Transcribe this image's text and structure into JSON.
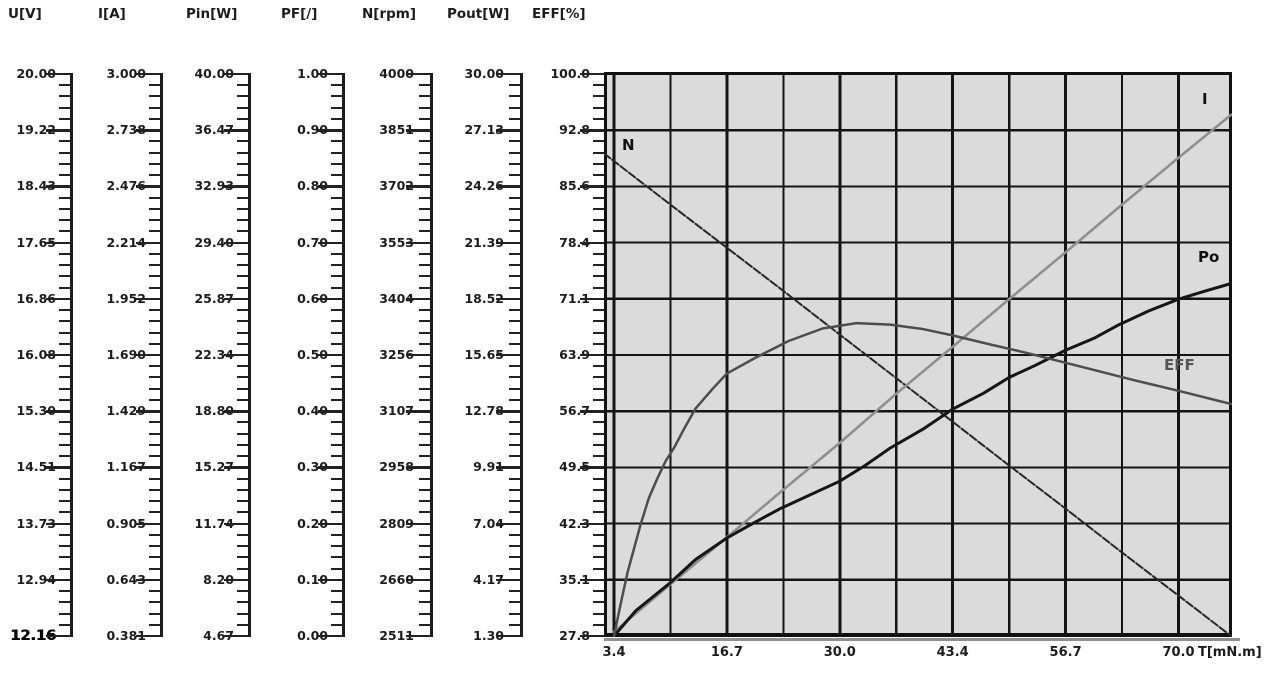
{
  "scales": [
    {
      "name": "u",
      "title": "U[V]",
      "labels": [
        "20.00",
        "19.22",
        "18.43",
        "17.65",
        "16.86",
        "16.08",
        "15.30",
        "14.51",
        "13.73",
        "12.94",
        "12.16"
      ],
      "bold_last": true
    },
    {
      "name": "i",
      "title": "I[A]",
      "labels": [
        "3.000",
        "2.738",
        "2.476",
        "2.214",
        "1.952",
        "1.690",
        "1.429",
        "1.167",
        "0.905",
        "0.643",
        "0.381"
      ],
      "bold_last": false
    },
    {
      "name": "pin",
      "title": "Pin[W]",
      "labels": [
        "40.00",
        "36.47",
        "32.93",
        "29.40",
        "25.87",
        "22.34",
        "18.80",
        "15.27",
        "11.74",
        "8.20",
        "4.67"
      ],
      "bold_last": false
    },
    {
      "name": "pf",
      "title": "PF[/]",
      "labels": [
        "1.00",
        "0.90",
        "0.80",
        "0.70",
        "0.60",
        "0.50",
        "0.40",
        "0.30",
        "0.20",
        "0.10",
        "0.00"
      ],
      "bold_last": false
    },
    {
      "name": "n",
      "title": "N[rpm]",
      "labels": [
        "4000",
        "3851",
        "3702",
        "3553",
        "3404",
        "3256",
        "3107",
        "2958",
        "2809",
        "2660",
        "2511"
      ],
      "bold_last": false
    },
    {
      "name": "pout",
      "title": "Pout[W]",
      "labels": [
        "30.00",
        "27.13",
        "24.26",
        "21.39",
        "18.52",
        "15.65",
        "12.78",
        "9.91",
        "7.04",
        "4.17",
        "1.30"
      ],
      "bold_last": false
    },
    {
      "name": "eff",
      "title": "EFF[%]",
      "labels": [
        "100.0",
        "92.8",
        "85.6",
        "78.4",
        "71.1",
        "63.9",
        "56.7",
        "49.5",
        "42.3",
        "35.1",
        "27.8"
      ],
      "bold_last": false
    }
  ],
  "chart_data": {
    "type": "line",
    "title": "",
    "xlabel": "T[mN.m]",
    "ylabel": "",
    "x_ticks": [
      "3.4",
      "16.7",
      "30.0",
      "43.4",
      "56.7",
      "70.0"
    ],
    "x_tick_values": [
      3.4,
      16.7,
      30.0,
      43.4,
      56.7,
      70.0
    ],
    "x_range": [
      3.4,
      76.2
    ],
    "grid": true,
    "plot_background": "#dbdbdb",
    "grid_color": "#141414",
    "series": [
      {
        "name": "N",
        "label": "N",
        "unit": "rpm",
        "axis_range": [
          2511,
          4000
        ],
        "color": "#272727",
        "width": 2,
        "dash": "8 2.5",
        "points": [
          [
            2.2,
            3790
          ],
          [
            10,
            3655
          ],
          [
            16.7,
            3540
          ],
          [
            23,
            3432
          ],
          [
            30,
            3310
          ],
          [
            36.7,
            3194
          ],
          [
            43.4,
            3078
          ],
          [
            50,
            2963
          ],
          [
            56.7,
            2848
          ],
          [
            63,
            2738
          ],
          [
            70,
            2618
          ],
          [
            76.2,
            2511
          ]
        ]
      },
      {
        "name": "I",
        "label": "I",
        "unit": "A",
        "axis_range": [
          0.381,
          3.0
        ],
        "color": "#8f8f8f",
        "width": 2.6,
        "dash": "",
        "points": [
          [
            3.4,
            0.4
          ],
          [
            10,
            0.62
          ],
          [
            16.7,
            0.84
          ],
          [
            23,
            1.05
          ],
          [
            30,
            1.28
          ],
          [
            36.7,
            1.51
          ],
          [
            43.4,
            1.73
          ],
          [
            50,
            1.95
          ],
          [
            56.7,
            2.17
          ],
          [
            63,
            2.38
          ],
          [
            70,
            2.61
          ],
          [
            76.2,
            2.81
          ]
        ]
      },
      {
        "name": "Po",
        "label": "Po",
        "unit": "W",
        "axis_range": [
          1.3,
          30.0
        ],
        "color": "#161616",
        "width": 3,
        "dash": "",
        "points": [
          [
            3.4,
            1.3
          ],
          [
            6,
            2.6
          ],
          [
            10,
            4.0
          ],
          [
            13,
            5.2
          ],
          [
            16.7,
            6.3
          ],
          [
            20,
            7.1
          ],
          [
            23,
            7.8
          ],
          [
            26.5,
            8.5
          ],
          [
            30,
            9.2
          ],
          [
            33,
            10.0
          ],
          [
            36,
            10.9
          ],
          [
            40,
            11.9
          ],
          [
            43.4,
            12.9
          ],
          [
            47,
            13.7
          ],
          [
            50,
            14.5
          ],
          [
            53,
            15.1
          ],
          [
            56.7,
            15.9
          ],
          [
            60,
            16.5
          ],
          [
            63,
            17.2
          ],
          [
            66.5,
            17.9
          ],
          [
            70,
            18.5
          ],
          [
            73,
            18.9
          ],
          [
            76.2,
            19.3
          ]
        ]
      },
      {
        "name": "EFF",
        "label": "EFF",
        "unit": "%",
        "axis_range": [
          27.8,
          100.0
        ],
        "color": "#4d4d4d",
        "width": 2.5,
        "dash": "",
        "points": [
          [
            3.4,
            27.8
          ],
          [
            4.2,
            32
          ],
          [
            5,
            36
          ],
          [
            6.5,
            42
          ],
          [
            7.5,
            45.5
          ],
          [
            8.5,
            48
          ],
          [
            9.5,
            50.3
          ],
          [
            10.5,
            52
          ],
          [
            11.7,
            54.5
          ],
          [
            13,
            57
          ],
          [
            15,
            59.5
          ],
          [
            16.7,
            61.5
          ],
          [
            20,
            63.5
          ],
          [
            24,
            65.7
          ],
          [
            28,
            67.3
          ],
          [
            32,
            68.0
          ],
          [
            36,
            67.8
          ],
          [
            40,
            67.2
          ],
          [
            43.4,
            66.4
          ],
          [
            48,
            65.2
          ],
          [
            52,
            64.2
          ],
          [
            56.7,
            62.9
          ],
          [
            61,
            61.7
          ],
          [
            65,
            60.6
          ],
          [
            70,
            59.3
          ],
          [
            76.2,
            57.6
          ]
        ]
      }
    ]
  }
}
